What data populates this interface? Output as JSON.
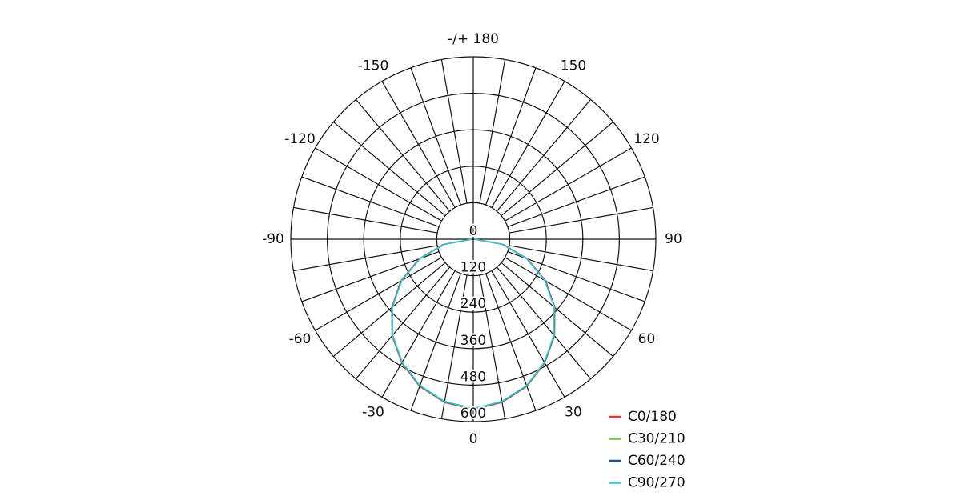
{
  "chart_data": {
    "type": "polar",
    "theta": [
      -90,
      -80,
      -70,
      -60,
      -50,
      -40,
      -30,
      -20,
      -10,
      0,
      10,
      20,
      30,
      40,
      50,
      60,
      70,
      80,
      90
    ],
    "thetaticks": [
      {
        "value": 180,
        "label": "-/+ 180"
      },
      -150,
      150,
      -120,
      120,
      -90,
      90,
      -60,
      60,
      -30,
      30,
      0
    ],
    "rlim": [
      0,
      600
    ],
    "rticks": [
      0,
      120,
      240,
      360,
      480,
      600
    ],
    "series": [
      {
        "name": "C0/180",
        "color": "#e8312a",
        "values": [
          5,
          100,
          190,
          275,
          350,
          415,
          470,
          515,
          545,
          560,
          545,
          515,
          470,
          415,
          350,
          275,
          190,
          100,
          5
        ]
      },
      {
        "name": "C30/210",
        "color": "#6cc04a",
        "values": [
          5,
          98,
          188,
          273,
          349,
          414,
          469,
          514,
          544,
          559,
          544,
          514,
          469,
          414,
          349,
          273,
          188,
          98,
          5
        ]
      },
      {
        "name": "C60/240",
        "color": "#1f4e8c",
        "values": [
          4,
          97,
          187,
          272,
          348,
          413,
          468,
          513,
          543,
          558,
          543,
          513,
          468,
          413,
          348,
          272,
          187,
          97,
          4
        ]
      },
      {
        "name": "C90/270",
        "color": "#3fc1d9",
        "values": [
          4,
          96,
          186,
          271,
          347,
          412,
          467,
          512,
          542,
          557,
          542,
          512,
          467,
          412,
          347,
          271,
          186,
          96,
          4
        ]
      }
    ]
  }
}
